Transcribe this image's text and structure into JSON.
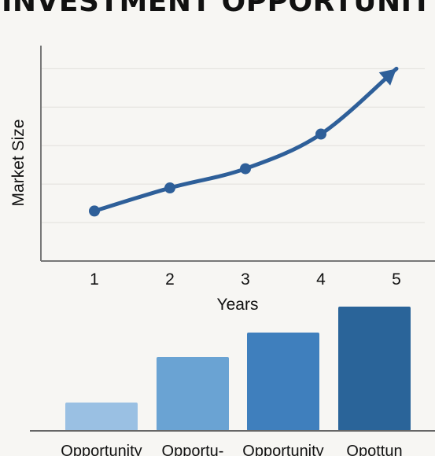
{
  "page": {
    "title": "INVESTMENT OPPORTUNITY"
  },
  "chart_data": [
    {
      "type": "line",
      "title": "",
      "xlabel": "Years",
      "ylabel": "Market Size",
      "x": [
        1,
        2,
        3,
        4,
        5
      ],
      "x_tick_labels": [
        "1",
        "2",
        "3",
        "4",
        "5"
      ],
      "series": [
        {
          "values": [
            1.3,
            1.9,
            2.4,
            3.3,
            5.0
          ]
        }
      ],
      "ylim": [
        0,
        5.6
      ],
      "grid": true,
      "end_arrow": true,
      "color": "#2e5f99"
    },
    {
      "type": "bar",
      "categories": [
        "Opportunity",
        "Opportu-",
        "Opportunity",
        "Opottun"
      ],
      "values": [
        36,
        94,
        125,
        158
      ],
      "ylim": [
        0,
        165
      ],
      "colors": [
        "#9ac0e3",
        "#6aa3d3",
        "#3f7fbd",
        "#2a6499"
      ]
    }
  ]
}
